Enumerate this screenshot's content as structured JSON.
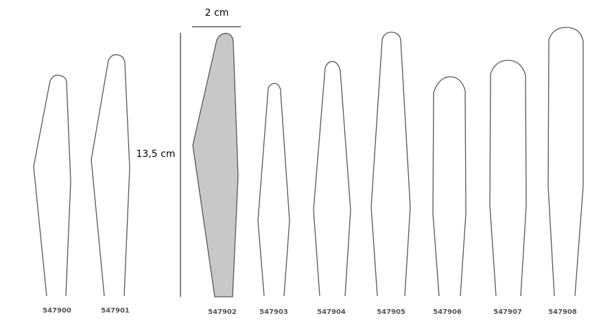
{
  "dimensions": {
    "width": "2 cm",
    "height": "13,5 cm"
  },
  "items": [
    {
      "code": "547900"
    },
    {
      "code": "547901"
    },
    {
      "code": "547902"
    },
    {
      "code": "547903"
    },
    {
      "code": "547904"
    },
    {
      "code": "547905"
    },
    {
      "code": "547906"
    },
    {
      "code": "547907"
    },
    {
      "code": "547908"
    }
  ]
}
